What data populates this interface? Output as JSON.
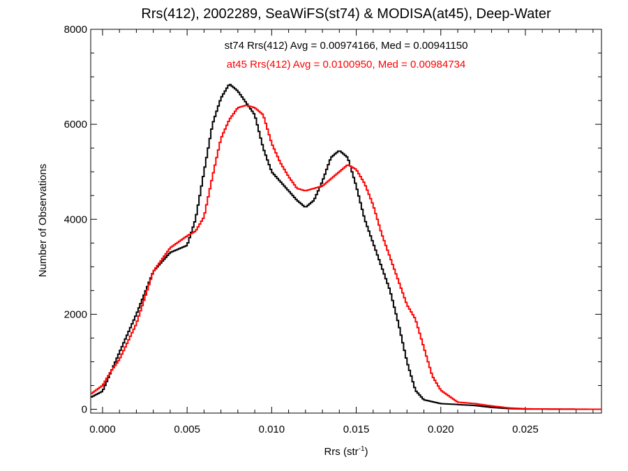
{
  "chart_data": {
    "type": "line",
    "title": "Rrs(412), 2002289, SeaWiFS(st74) & MODISA(at45), Deep-Water",
    "xlabel": {
      "main": "Rrs (str",
      "sup": "-1",
      "close": ")"
    },
    "ylabel": "Number of Observations",
    "xlim": [
      -0.0007,
      0.0295
    ],
    "ylim": [
      -80,
      8000
    ],
    "xticks": [
      0.0,
      0.005,
      0.01,
      0.015,
      0.02,
      0.025
    ],
    "xtick_labels": [
      "0.000",
      "0.005",
      "0.010",
      "0.015",
      "0.020",
      "0.025"
    ],
    "yticks": [
      0,
      2000,
      4000,
      6000,
      8000
    ],
    "ytick_labels": [
      "0",
      "2000",
      "4000",
      "6000",
      "8000"
    ],
    "grid": false,
    "annotations": [
      {
        "text": "st74 Rrs(412) Avg = 0.00974166, Med = 0.00941150",
        "color": "#000000"
      },
      {
        "text": "at45 Rrs(412) Avg = 0.0100950, Med = 0.00984734",
        "color": "#ff0000"
      }
    ],
    "series": [
      {
        "key": "st74",
        "color": "#000000",
        "points": [
          [
            -0.0007,
            250
          ],
          [
            0.0,
            380
          ],
          [
            0.001,
            1200
          ],
          [
            0.002,
            2000
          ],
          [
            0.003,
            2900
          ],
          [
            0.004,
            3300
          ],
          [
            0.005,
            3450
          ],
          [
            0.0055,
            4000
          ],
          [
            0.006,
            5000
          ],
          [
            0.0065,
            6000
          ],
          [
            0.007,
            6550
          ],
          [
            0.0075,
            6850
          ],
          [
            0.008,
            6700
          ],
          [
            0.0085,
            6450
          ],
          [
            0.009,
            6200
          ],
          [
            0.0095,
            5500
          ],
          [
            0.01,
            5000
          ],
          [
            0.011,
            4600
          ],
          [
            0.0115,
            4400
          ],
          [
            0.012,
            4250
          ],
          [
            0.0125,
            4400
          ],
          [
            0.013,
            4800
          ],
          [
            0.0135,
            5300
          ],
          [
            0.014,
            5450
          ],
          [
            0.0145,
            5300
          ],
          [
            0.015,
            4700
          ],
          [
            0.0155,
            4000
          ],
          [
            0.016,
            3500
          ],
          [
            0.0165,
            3000
          ],
          [
            0.017,
            2500
          ],
          [
            0.0175,
            1800
          ],
          [
            0.018,
            1000
          ],
          [
            0.0185,
            400
          ],
          [
            0.019,
            200
          ],
          [
            0.02,
            120
          ],
          [
            0.021,
            100
          ],
          [
            0.022,
            80
          ],
          [
            0.023,
            40
          ],
          [
            0.024,
            15
          ],
          [
            0.025,
            5
          ],
          [
            0.0295,
            0
          ]
        ]
      },
      {
        "key": "at45",
        "color": "#ff0000",
        "points": [
          [
            -0.0007,
            320
          ],
          [
            0.0,
            500
          ],
          [
            0.0005,
            800
          ],
          [
            0.001,
            1050
          ],
          [
            0.002,
            1800
          ],
          [
            0.003,
            2900
          ],
          [
            0.004,
            3400
          ],
          [
            0.005,
            3650
          ],
          [
            0.0055,
            3750
          ],
          [
            0.006,
            4050
          ],
          [
            0.0065,
            4900
          ],
          [
            0.007,
            5700
          ],
          [
            0.0075,
            6100
          ],
          [
            0.008,
            6350
          ],
          [
            0.0085,
            6400
          ],
          [
            0.009,
            6350
          ],
          [
            0.0095,
            6200
          ],
          [
            0.01,
            5600
          ],
          [
            0.0105,
            5200
          ],
          [
            0.011,
            4900
          ],
          [
            0.0115,
            4650
          ],
          [
            0.012,
            4600
          ],
          [
            0.0125,
            4650
          ],
          [
            0.013,
            4700
          ],
          [
            0.0135,
            4850
          ],
          [
            0.014,
            5000
          ],
          [
            0.0145,
            5150
          ],
          [
            0.015,
            5050
          ],
          [
            0.0155,
            4750
          ],
          [
            0.016,
            4300
          ],
          [
            0.0165,
            3700
          ],
          [
            0.017,
            3200
          ],
          [
            0.0175,
            2700
          ],
          [
            0.018,
            2200
          ],
          [
            0.0185,
            1900
          ],
          [
            0.019,
            1300
          ],
          [
            0.0195,
            700
          ],
          [
            0.02,
            400
          ],
          [
            0.021,
            150
          ],
          [
            0.022,
            120
          ],
          [
            0.023,
            70
          ],
          [
            0.024,
            30
          ],
          [
            0.025,
            10
          ],
          [
            0.0295,
            0
          ]
        ]
      }
    ]
  }
}
